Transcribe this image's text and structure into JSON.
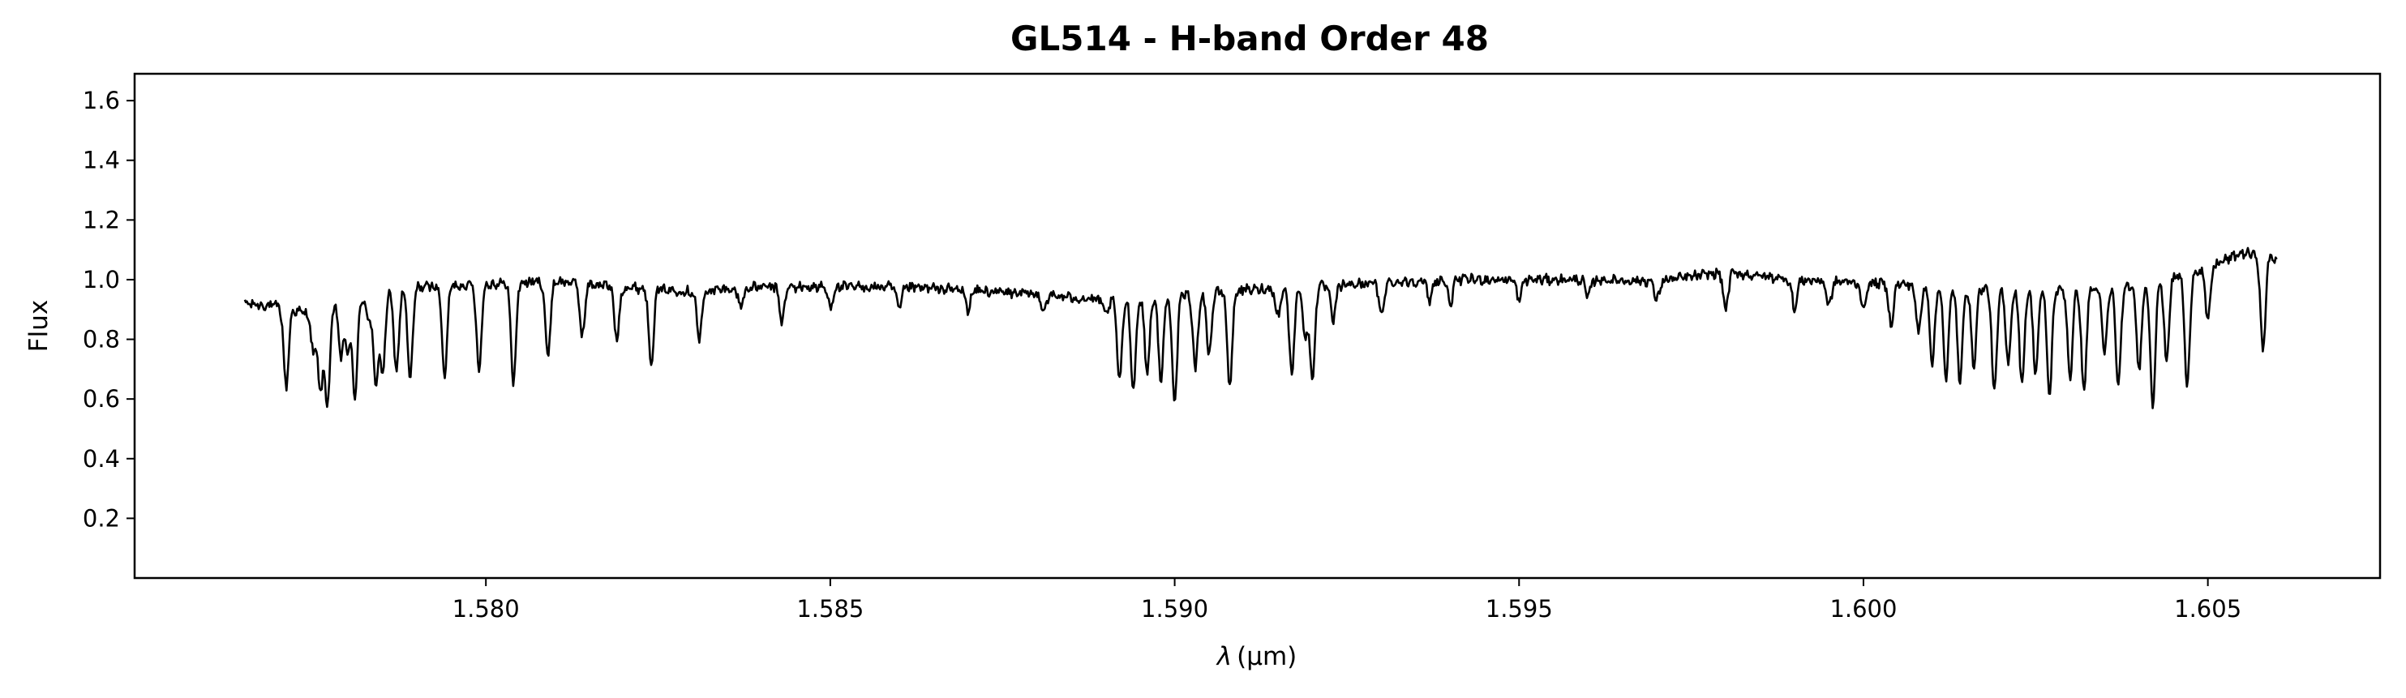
{
  "chart_data": {
    "type": "line",
    "title": "GL514 - H-band Order 48",
    "xlabel_symbol": "λ",
    "xlabel_units": "(μm)",
    "ylabel": "Flux",
    "xlim": [
      1.5749,
      1.6075
    ],
    "ylim": [
      0.0,
      1.69
    ],
    "x_ticks": [
      1.58,
      1.585,
      1.59,
      1.595,
      1.6,
      1.605
    ],
    "x_tick_labels": [
      "1.580",
      "1.585",
      "1.590",
      "1.595",
      "1.600",
      "1.605"
    ],
    "y_ticks": [
      0.2,
      0.4,
      0.6,
      0.8,
      1.0,
      1.2,
      1.4,
      1.6
    ],
    "y_tick_labels": [
      "0.2",
      "0.4",
      "0.6",
      "0.8",
      "1.0",
      "1.2",
      "1.4",
      "1.6"
    ],
    "grid": false,
    "line_color": "#000000",
    "series": [
      {
        "x_range": [
          1.5765,
          1.606
        ],
        "continuum": [
          [
            1.5765,
            0.92
          ],
          [
            1.577,
            0.91
          ],
          [
            1.5775,
            0.88
          ],
          [
            1.578,
            0.93
          ],
          [
            1.579,
            0.975
          ],
          [
            1.58,
            0.985
          ],
          [
            1.581,
            0.995
          ],
          [
            1.582,
            0.975
          ],
          [
            1.583,
            0.96
          ],
          [
            1.584,
            0.975
          ],
          [
            1.585,
            0.975
          ],
          [
            1.586,
            0.975
          ],
          [
            1.587,
            0.965
          ],
          [
            1.588,
            0.95
          ],
          [
            1.589,
            0.93
          ],
          [
            1.59,
            0.945
          ],
          [
            1.591,
            0.965
          ],
          [
            1.592,
            0.975
          ],
          [
            1.593,
            0.99
          ],
          [
            1.594,
            1.0
          ],
          [
            1.595,
            1.0
          ],
          [
            1.596,
            1.0
          ],
          [
            1.597,
            0.995
          ],
          [
            1.598,
            1.025
          ],
          [
            1.599,
            1.0
          ],
          [
            1.6,
            0.99
          ],
          [
            1.601,
            0.98
          ],
          [
            1.602,
            0.965
          ],
          [
            1.603,
            0.965
          ],
          [
            1.604,
            0.975
          ],
          [
            1.605,
            1.04
          ],
          [
            1.6055,
            1.09
          ],
          [
            1.606,
            1.07
          ]
        ],
        "absorption_lines": [
          [
            1.5771,
            0.64
          ],
          [
            1.5775,
            0.75
          ],
          [
            1.5776,
            0.62
          ],
          [
            1.5777,
            0.58
          ],
          [
            1.5779,
            0.74
          ],
          [
            1.578,
            0.76
          ],
          [
            1.5781,
            0.61
          ],
          [
            1.5783,
            0.87
          ],
          [
            1.5784,
            0.64
          ],
          [
            1.5785,
            0.68
          ],
          [
            1.5787,
            0.69
          ],
          [
            1.5789,
            0.66
          ],
          [
            1.5794,
            0.67
          ],
          [
            1.5799,
            0.7
          ],
          [
            1.5804,
            0.65
          ],
          [
            1.5809,
            0.74
          ],
          [
            1.5814,
            0.81
          ],
          [
            1.5819,
            0.8
          ],
          [
            1.5824,
            0.72
          ],
          [
            1.5831,
            0.8
          ],
          [
            1.5837,
            0.91
          ],
          [
            1.5843,
            0.86
          ],
          [
            1.585,
            0.91
          ],
          [
            1.586,
            0.9
          ],
          [
            1.587,
            0.9
          ],
          [
            1.5881,
            0.9
          ],
          [
            1.589,
            0.88
          ],
          [
            1.5892,
            0.66
          ],
          [
            1.5894,
            0.63
          ],
          [
            1.5896,
            0.69
          ],
          [
            1.5898,
            0.66
          ],
          [
            1.59,
            0.59
          ],
          [
            1.5903,
            0.7
          ],
          [
            1.5905,
            0.75
          ],
          [
            1.5908,
            0.64
          ],
          [
            1.5915,
            0.88
          ],
          [
            1.5917,
            0.68
          ],
          [
            1.5919,
            0.8
          ],
          [
            1.592,
            0.67
          ],
          [
            1.5923,
            0.86
          ],
          [
            1.593,
            0.88
          ],
          [
            1.5937,
            0.93
          ],
          [
            1.594,
            0.92
          ],
          [
            1.595,
            0.93
          ],
          [
            1.596,
            0.94
          ],
          [
            1.597,
            0.93
          ],
          [
            1.598,
            0.9
          ],
          [
            1.599,
            0.9
          ],
          [
            1.5995,
            0.91
          ],
          [
            1.6,
            0.9
          ],
          [
            1.6004,
            0.85
          ],
          [
            1.6008,
            0.82
          ],
          [
            1.601,
            0.72
          ],
          [
            1.6012,
            0.66
          ],
          [
            1.6014,
            0.65
          ],
          [
            1.6016,
            0.71
          ],
          [
            1.6019,
            0.62
          ],
          [
            1.6021,
            0.72
          ],
          [
            1.6023,
            0.65
          ],
          [
            1.6025,
            0.69
          ],
          [
            1.6027,
            0.61
          ],
          [
            1.603,
            0.67
          ],
          [
            1.6032,
            0.62
          ],
          [
            1.6035,
            0.75
          ],
          [
            1.6037,
            0.64
          ],
          [
            1.604,
            0.7
          ],
          [
            1.6042,
            0.58
          ],
          [
            1.6044,
            0.73
          ],
          [
            1.6047,
            0.63
          ],
          [
            1.605,
            0.86
          ],
          [
            1.6058,
            0.76
          ]
        ]
      }
    ]
  }
}
